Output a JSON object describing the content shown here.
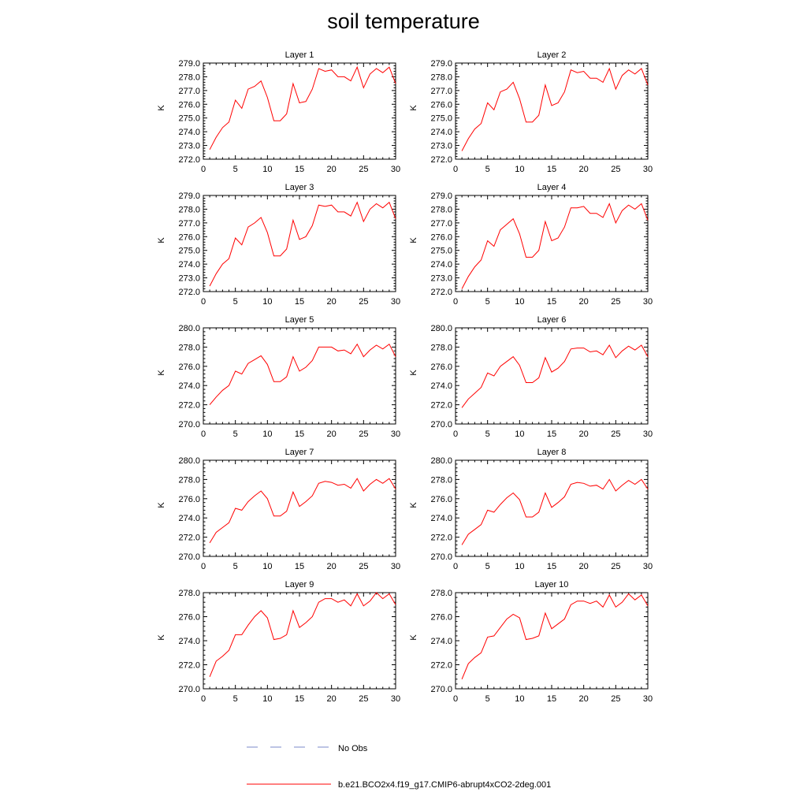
{
  "title": "soil temperature",
  "chart_data": {
    "type": "line",
    "ylabel": "K",
    "x": [
      1,
      2,
      3,
      4,
      5,
      6,
      7,
      8,
      9,
      10,
      11,
      12,
      13,
      14,
      15,
      16,
      17,
      18,
      19,
      20,
      21,
      22,
      23,
      24,
      25,
      26,
      27,
      28,
      29,
      30
    ],
    "xlim": [
      0,
      30
    ],
    "xticks": [
      "0",
      "5",
      "10",
      "15",
      "20",
      "25",
      "30"
    ],
    "line_color": "#ff0000",
    "panels": [
      {
        "title": "Layer 1",
        "ylim": [
          272,
          279
        ],
        "yticks": [
          "272.0",
          "273.0",
          "274.0",
          "275.0",
          "276.0",
          "277.0",
          "278.0",
          "279.0"
        ],
        "values": [
          272.7,
          273.6,
          274.3,
          274.7,
          276.3,
          275.7,
          277.1,
          277.3,
          277.7,
          276.5,
          274.8,
          274.8,
          275.3,
          277.5,
          276.1,
          276.2,
          277.1,
          278.6,
          278.4,
          278.5,
          278.0,
          278.0,
          277.7,
          278.7,
          277.2,
          278.2,
          278.6,
          278.3,
          278.7,
          277.5
        ]
      },
      {
        "title": "Layer 2",
        "ylim": [
          272,
          279
        ],
        "yticks": [
          "272.0",
          "273.0",
          "274.0",
          "275.0",
          "276.0",
          "277.0",
          "278.0",
          "279.0"
        ],
        "values": [
          272.6,
          273.5,
          274.2,
          274.6,
          276.1,
          275.6,
          276.9,
          277.1,
          277.6,
          276.4,
          274.7,
          274.7,
          275.2,
          277.4,
          275.9,
          276.1,
          276.9,
          278.5,
          278.3,
          278.4,
          277.9,
          277.9,
          277.6,
          278.6,
          277.1,
          278.1,
          278.5,
          278.2,
          278.6,
          277.4
        ]
      },
      {
        "title": "Layer 3",
        "ylim": [
          272,
          279
        ],
        "yticks": [
          "272.0",
          "273.0",
          "274.0",
          "275.0",
          "276.0",
          "277.0",
          "278.0",
          "279.0"
        ],
        "values": [
          272.4,
          273.3,
          274.0,
          274.4,
          275.9,
          275.4,
          276.7,
          277.0,
          277.4,
          276.3,
          274.6,
          274.6,
          275.1,
          277.2,
          275.8,
          276.0,
          276.8,
          278.3,
          278.2,
          278.3,
          277.8,
          277.8,
          277.5,
          278.5,
          277.1,
          278.0,
          278.4,
          278.1,
          278.5,
          277.3
        ]
      },
      {
        "title": "Layer 4",
        "ylim": [
          272,
          279
        ],
        "yticks": [
          "272.0",
          "273.0",
          "274.0",
          "275.0",
          "276.0",
          "277.0",
          "278.0",
          "279.0"
        ],
        "values": [
          272.2,
          273.1,
          273.8,
          274.3,
          275.7,
          275.3,
          276.5,
          276.9,
          277.3,
          276.2,
          274.5,
          274.5,
          275.0,
          277.1,
          275.7,
          275.9,
          276.7,
          278.1,
          278.1,
          278.2,
          277.7,
          277.7,
          277.4,
          278.4,
          277.0,
          277.9,
          278.3,
          278.0,
          278.4,
          277.2
        ]
      },
      {
        "title": "Layer 5",
        "ylim": [
          270,
          280
        ],
        "yticks": [
          "270.0",
          "272.0",
          "274.0",
          "276.0",
          "278.0",
          "280.0"
        ],
        "values": [
          272.0,
          272.8,
          273.5,
          274.0,
          275.5,
          275.2,
          276.3,
          276.7,
          277.1,
          276.2,
          274.4,
          274.4,
          274.9,
          277.0,
          275.5,
          275.9,
          276.6,
          278.0,
          278.0,
          278.0,
          277.6,
          277.7,
          277.3,
          278.3,
          277.0,
          277.7,
          278.2,
          277.8,
          278.3,
          277.0
        ]
      },
      {
        "title": "Layer 6",
        "ylim": [
          270,
          280
        ],
        "yticks": [
          "270.0",
          "272.0",
          "274.0",
          "276.0",
          "278.0",
          "280.0"
        ],
        "values": [
          271.7,
          272.6,
          273.2,
          273.8,
          275.3,
          275.0,
          276.0,
          276.5,
          277.0,
          276.1,
          274.3,
          274.3,
          274.8,
          276.9,
          275.4,
          275.8,
          276.5,
          277.8,
          277.9,
          277.9,
          277.5,
          277.6,
          277.2,
          278.2,
          276.9,
          277.6,
          278.1,
          277.7,
          278.2,
          277.0
        ]
      },
      {
        "title": "Layer 7",
        "ylim": [
          270,
          280
        ],
        "yticks": [
          "270.0",
          "272.0",
          "274.0",
          "276.0",
          "278.0",
          "280.0"
        ],
        "values": [
          271.4,
          272.5,
          273.0,
          273.5,
          275.0,
          274.8,
          275.7,
          276.3,
          276.8,
          276.0,
          274.2,
          274.2,
          274.7,
          276.7,
          275.2,
          275.7,
          276.3,
          277.6,
          277.8,
          277.7,
          277.4,
          277.5,
          277.1,
          278.1,
          276.8,
          277.5,
          278.0,
          277.6,
          278.1,
          277.0
        ]
      },
      {
        "title": "Layer 8",
        "ylim": [
          270,
          280
        ],
        "yticks": [
          "270.0",
          "272.0",
          "274.0",
          "276.0",
          "278.0",
          "280.0"
        ],
        "values": [
          271.2,
          272.3,
          272.8,
          273.3,
          274.8,
          274.6,
          275.4,
          276.1,
          276.6,
          275.9,
          274.1,
          274.1,
          274.6,
          276.6,
          275.1,
          275.6,
          276.2,
          277.5,
          277.7,
          277.6,
          277.3,
          277.4,
          277.0,
          278.0,
          276.8,
          277.4,
          277.9,
          277.5,
          278.0,
          277.0
        ]
      },
      {
        "title": "Layer 9",
        "ylim": [
          270,
          278
        ],
        "yticks": [
          "270.0",
          "272.0",
          "274.0",
          "276.0",
          "278.0"
        ],
        "values": [
          271.0,
          272.3,
          272.7,
          273.2,
          274.5,
          274.5,
          275.3,
          276.0,
          276.5,
          275.9,
          274.1,
          274.2,
          274.5,
          276.5,
          275.1,
          275.5,
          276.0,
          277.2,
          277.5,
          277.5,
          277.2,
          277.4,
          276.9,
          277.9,
          276.9,
          277.3,
          278.0,
          277.5,
          277.9,
          277.0
        ]
      },
      {
        "title": "Layer 10",
        "ylim": [
          270,
          278
        ],
        "yticks": [
          "270.0",
          "272.0",
          "274.0",
          "276.0",
          "278.0"
        ],
        "values": [
          270.8,
          272.1,
          272.6,
          273.0,
          274.3,
          274.4,
          275.1,
          275.8,
          276.2,
          275.9,
          274.1,
          274.2,
          274.4,
          276.3,
          275.0,
          275.4,
          275.8,
          277.0,
          277.3,
          277.3,
          277.1,
          277.3,
          276.8,
          277.8,
          276.8,
          277.2,
          277.9,
          277.4,
          277.8,
          276.9
        ]
      }
    ],
    "legend": {
      "placement": "bottom-center",
      "entries": [
        {
          "label": "No Obs",
          "color": "#7b8ac8",
          "style": "dashed"
        },
        {
          "label": "b.e21.BCO2x4.f19_g17.CMIP6-abrupt4xCO2-2deg.001",
          "color": "#ff0000",
          "style": "solid"
        }
      ]
    }
  }
}
